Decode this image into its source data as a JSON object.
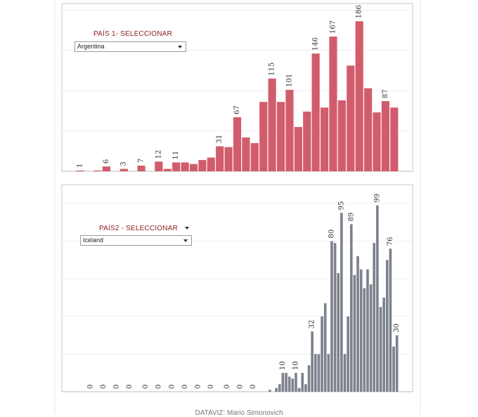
{
  "chart_data": [
    {
      "type": "bar",
      "color": "#d15d6c",
      "filter_label": "PAÍS 1- SELECCIONAR",
      "filter_value": "Argentina",
      "values": [
        1,
        0,
        1,
        6,
        0,
        3,
        0,
        7,
        0,
        12,
        3,
        11,
        11,
        9,
        14,
        17,
        31,
        30,
        67,
        42,
        35,
        86,
        115,
        86,
        101,
        55,
        74,
        146,
        79,
        167,
        88,
        131,
        186,
        103,
        73,
        87,
        79
      ],
      "value_labels": [
        "1",
        null,
        null,
        "6",
        null,
        "3",
        null,
        "7",
        null,
        "12",
        null,
        "11",
        null,
        null,
        null,
        null,
        "31",
        null,
        "67",
        null,
        null,
        null,
        "115",
        null,
        "101",
        null,
        null,
        "146",
        null,
        "167",
        null,
        null,
        "186",
        null,
        null,
        "87",
        null
      ],
      "ylim": [
        0,
        208
      ],
      "yticks": [
        0,
        50,
        100,
        150,
        200
      ],
      "grid": true
    },
    {
      "type": "bar",
      "color": "#7c818d",
      "filter_label": "PAÍS2 - SELECCIONAR",
      "filter_value": "Iceland",
      "values": [
        0,
        0,
        0,
        0,
        0,
        0,
        0,
        0,
        0,
        0,
        0,
        0,
        0,
        0,
        0,
        0,
        0,
        0,
        0,
        0,
        0,
        0,
        0,
        0,
        0,
        0,
        0,
        0,
        0,
        0,
        0,
        0,
        0,
        0,
        0,
        0,
        0,
        0,
        0,
        0,
        0,
        0,
        0,
        0,
        0,
        0,
        0,
        0,
        0,
        0,
        0,
        0,
        0,
        0,
        0,
        0,
        0,
        0,
        0,
        1,
        0,
        2,
        4,
        10,
        10,
        8,
        7,
        10,
        2,
        10,
        4,
        14,
        32,
        20,
        20,
        40,
        47,
        20,
        80,
        79,
        63,
        95,
        20,
        40,
        89,
        62,
        72,
        65,
        55,
        65,
        57,
        79,
        99,
        45,
        50,
        70,
        76,
        24,
        30
      ],
      "value_labels": [
        null,
        null,
        null,
        null,
        "0",
        null,
        null,
        null,
        "0",
        null,
        null,
        null,
        "0",
        null,
        null,
        null,
        "0",
        null,
        null,
        null,
        null,
        "0",
        null,
        null,
        null,
        "0",
        null,
        null,
        null,
        "0",
        null,
        null,
        null,
        "0",
        null,
        null,
        null,
        "0",
        null,
        null,
        null,
        "0",
        null,
        null,
        null,
        null,
        "0",
        null,
        null,
        null,
        "0",
        null,
        null,
        null,
        "0",
        null,
        null,
        null,
        null,
        null,
        null,
        null,
        null,
        "10",
        null,
        null,
        null,
        "10",
        null,
        null,
        null,
        null,
        "32",
        null,
        null,
        null,
        null,
        null,
        "80",
        null,
        null,
        "95",
        null,
        null,
        "89",
        null,
        null,
        null,
        null,
        null,
        null,
        null,
        "99",
        null,
        null,
        null,
        "76",
        null,
        "30"
      ],
      "ylim": [
        0,
        110
      ],
      "yticks": [
        0,
        20,
        40,
        60,
        80,
        100
      ],
      "grid": true
    }
  ],
  "footer": "DATAVIZ: Mario Simonovich"
}
